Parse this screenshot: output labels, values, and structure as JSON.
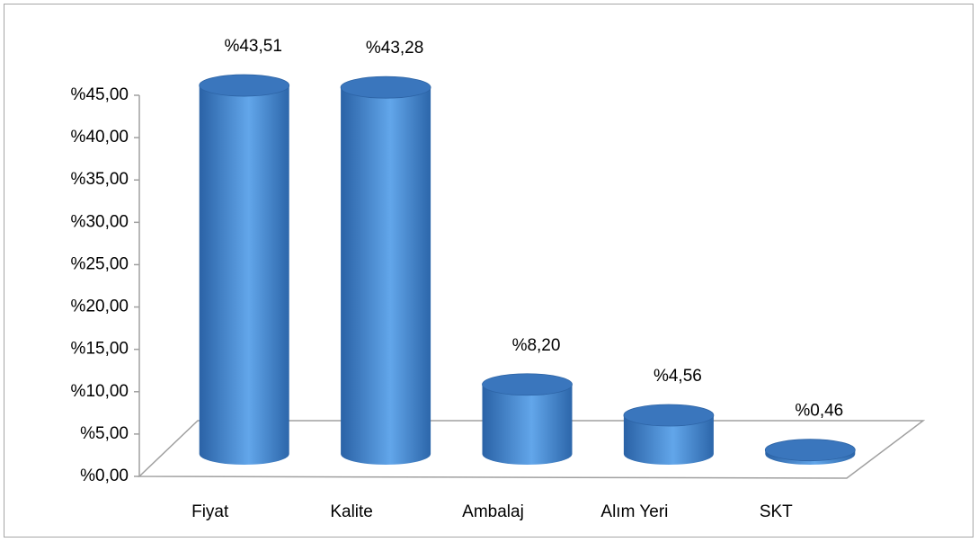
{
  "chart_data": {
    "type": "bar3d",
    "categories": [
      "Fiyat",
      "Kalite",
      "Ambalaj",
      "Alım Yeri",
      "SKT"
    ],
    "values": [
      43.51,
      43.28,
      8.2,
      4.56,
      0.46
    ],
    "value_labels": [
      "%43,51",
      "%43,28",
      "%8,20",
      "%4,56",
      "%0,46"
    ],
    "color": "#4a8fd6",
    "ylim": [
      0,
      45
    ],
    "yticks": [
      {
        "value": 0,
        "label": "%0,00"
      },
      {
        "value": 5,
        "label": "%5,00"
      },
      {
        "value": 10,
        "label": "%10,00"
      },
      {
        "value": 15,
        "label": "%15,00"
      },
      {
        "value": 20,
        "label": "%20,00"
      },
      {
        "value": 25,
        "label": "%25,00"
      },
      {
        "value": 30,
        "label": "%30,00"
      },
      {
        "value": 35,
        "label": "%35,00"
      },
      {
        "value": 40,
        "label": "%40,00"
      },
      {
        "value": 45,
        "label": "%45,00"
      }
    ]
  }
}
